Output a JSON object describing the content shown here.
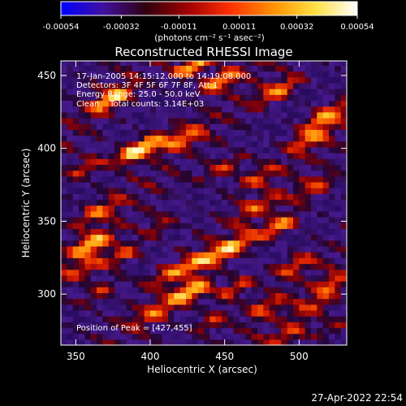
{
  "colorbar": {
    "tick_labels": [
      "-0.00054",
      "-0.00032",
      "-0.00011",
      "0.00011",
      "0.00032",
      "0.00054"
    ],
    "range": [
      -0.00054,
      0.00054
    ],
    "units_label": "(photons cm⁻² s⁻¹ asec⁻²)",
    "colors": [
      "#0000ff",
      "#4010a0",
      "#300010",
      "#a00000",
      "#ff3000",
      "#ff9000",
      "#ffe040",
      "#ffffff"
    ]
  },
  "chart_data": {
    "type": "heatmap",
    "title": "Reconstructed RHESSI Image",
    "xlabel": "Heliocentric X (arcsec)",
    "ylabel": "Heliocentric Y (arcsec)",
    "xlim": [
      340,
      532
    ],
    "ylim": [
      265,
      460
    ],
    "x_ticks": [
      "350",
      "400",
      "450",
      "500"
    ],
    "y_ticks": [
      "300",
      "350",
      "400",
      "450"
    ],
    "annotations": [
      "17-Jan-2005 14:15:12.000 to 14:19:08.000",
      "Detectors: 3F 4F 5F 6F 7F 8F, Att 1",
      "Energy Range: 25.0 - 50.0 keV",
      "Clean    Total counts: 3.14E+03"
    ],
    "peak_label": "Position of Peak = [427,455]",
    "peak_position": [
      427,
      455
    ],
    "hotspots": [
      [
        427,
        455,
        1.0
      ],
      [
        445,
        445,
        0.8
      ],
      [
        372,
        432,
        0.85
      ],
      [
        485,
        438,
        0.75
      ],
      [
        515,
        420,
        0.7
      ],
      [
        395,
        400,
        0.75
      ],
      [
        420,
        405,
        0.6
      ],
      [
        385,
        395,
        0.55
      ],
      [
        505,
        405,
        0.6
      ],
      [
        355,
        385,
        0.5
      ],
      [
        448,
        385,
        0.6
      ],
      [
        470,
        378,
        0.45
      ],
      [
        510,
        372,
        0.55
      ],
      [
        363,
        355,
        0.55
      ],
      [
        405,
        345,
        0.4
      ],
      [
        470,
        358,
        0.45
      ],
      [
        485,
        345,
        0.75
      ],
      [
        358,
        332,
        0.85
      ],
      [
        380,
        325,
        0.55
      ],
      [
        452,
        330,
        0.8
      ],
      [
        430,
        320,
        0.55
      ],
      [
        352,
        315,
        0.45
      ],
      [
        495,
        318,
        0.55
      ],
      [
        520,
        305,
        0.5
      ],
      [
        410,
        312,
        0.45
      ],
      [
        425,
        300,
        0.85
      ],
      [
        455,
        302,
        0.6
      ],
      [
        475,
        290,
        0.45
      ],
      [
        508,
        290,
        0.4
      ],
      [
        365,
        300,
        0.5
      ],
      [
        400,
        285,
        0.45
      ],
      [
        440,
        280,
        0.5
      ],
      [
        490,
        270,
        0.45
      ],
      [
        520,
        275,
        0.4
      ]
    ]
  },
  "footer": {
    "timestamp": "27-Apr-2022 22:54"
  }
}
